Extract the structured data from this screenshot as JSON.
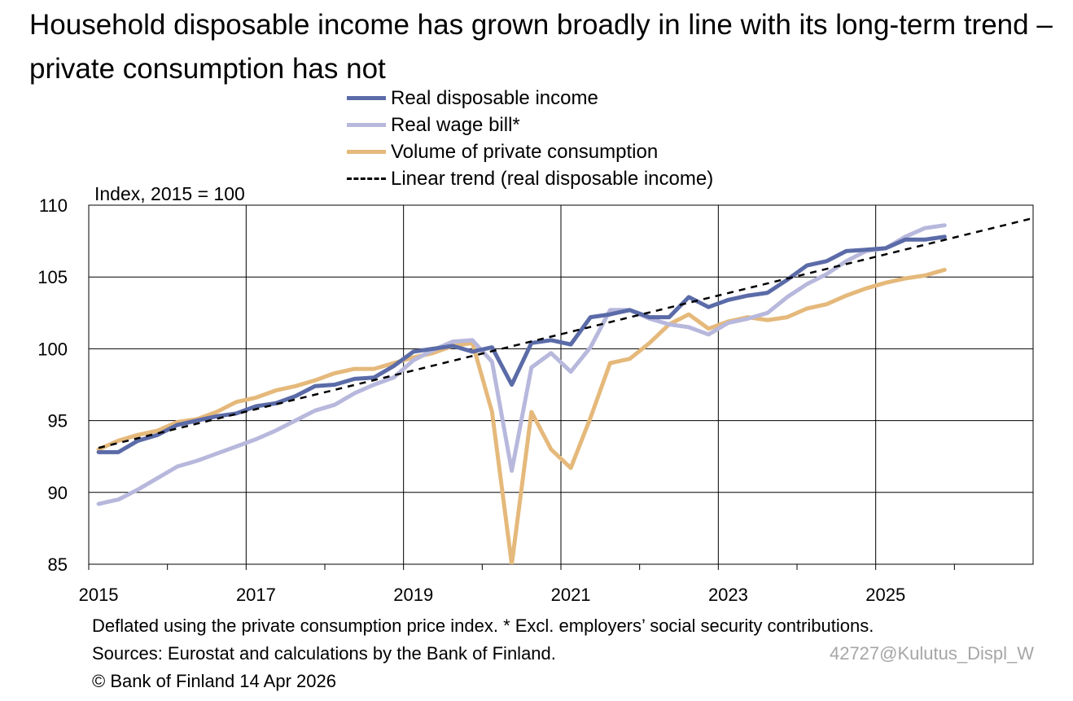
{
  "title": "Household disposable income has grown broadly in line with its long-term trend – private consumption has not",
  "footer": {
    "note": "Deflated using the private consumption price index. * Excl. employers’ social security contributions.",
    "sources": "Sources: Eurostat and calculations by the Bank of Finland.",
    "copyright": "© Bank of Finland 14 Apr 2026",
    "code": "42727@Kulutus_Displ_W"
  },
  "chart_data": {
    "type": "line",
    "ylabel": "Index, 2015 = 100",
    "ylim": [
      85,
      110
    ],
    "yticks": [
      85,
      90,
      95,
      100,
      105,
      110
    ],
    "xlim": [
      2014.875,
      2026.875
    ],
    "xticks": [
      2015,
      2017,
      2019,
      2021,
      2023,
      2025
    ],
    "grid": true,
    "legend_position": "top",
    "x": [
      2015.0,
      2015.25,
      2015.5,
      2015.75,
      2016.0,
      2016.25,
      2016.5,
      2016.75,
      2017.0,
      2017.25,
      2017.5,
      2017.75,
      2018.0,
      2018.25,
      2018.5,
      2018.75,
      2019.0,
      2019.25,
      2019.5,
      2019.75,
      2020.0,
      2020.25,
      2020.5,
      2020.75,
      2021.0,
      2021.25,
      2021.5,
      2021.75,
      2022.0,
      2022.25,
      2022.5,
      2022.75,
      2023.0,
      2023.25,
      2023.5,
      2023.75,
      2024.0,
      2024.25,
      2024.5,
      2024.75,
      2025.0,
      2025.25,
      2025.5,
      2025.75
    ],
    "series": [
      {
        "name": "Real disposable income",
        "color": "#5b6ba8",
        "values": [
          92.8,
          92.8,
          93.6,
          94.0,
          94.7,
          95.0,
          95.3,
          95.5,
          96.0,
          96.2,
          96.7,
          97.4,
          97.5,
          97.9,
          98.0,
          98.8,
          99.8,
          100.0,
          100.2,
          99.8,
          100.1,
          97.5,
          100.4,
          100.6,
          100.3,
          102.2,
          102.4,
          102.7,
          102.2,
          102.2,
          103.6,
          102.9,
          103.4,
          103.7,
          103.9,
          104.8,
          105.8,
          106.1,
          106.8,
          106.9,
          107.0,
          107.6,
          107.6,
          107.8
        ]
      },
      {
        "name": "Real wage bill*",
        "color": "#b7b8dc",
        "values": [
          89.2,
          89.5,
          90.2,
          91.0,
          91.8,
          92.2,
          92.7,
          93.2,
          93.7,
          94.3,
          95.0,
          95.7,
          96.1,
          96.9,
          97.5,
          98.0,
          99.2,
          99.9,
          100.5,
          100.6,
          99.1,
          91.5,
          98.7,
          99.7,
          98.4,
          100.1,
          102.7,
          102.7,
          102.1,
          101.7,
          101.5,
          101.0,
          101.8,
          102.1,
          102.5,
          103.6,
          104.5,
          105.2,
          106.1,
          106.8,
          107.0,
          107.8,
          108.4,
          108.6
        ]
      },
      {
        "name": "Volume of private consumption",
        "color": "#e5b97b",
        "values": [
          93.0,
          93.6,
          94.0,
          94.3,
          94.9,
          95.1,
          95.6,
          96.3,
          96.6,
          97.1,
          97.4,
          97.8,
          98.3,
          98.6,
          98.6,
          99.0,
          99.4,
          99.7,
          100.2,
          100.4,
          95.6,
          85.0,
          95.6,
          93.0,
          91.7,
          95.2,
          99.0,
          99.3,
          100.4,
          101.7,
          102.4,
          101.4,
          101.9,
          102.2,
          102.0,
          102.2,
          102.8,
          103.1,
          103.7,
          104.2,
          104.6,
          104.9,
          105.1,
          105.5
        ]
      },
      {
        "name": "Linear trend (real disposable income)",
        "color": "#000000",
        "dashed": true,
        "x": [
          2015.0,
          2026.875
        ],
        "values": [
          93.1,
          109.1
        ]
      }
    ]
  }
}
